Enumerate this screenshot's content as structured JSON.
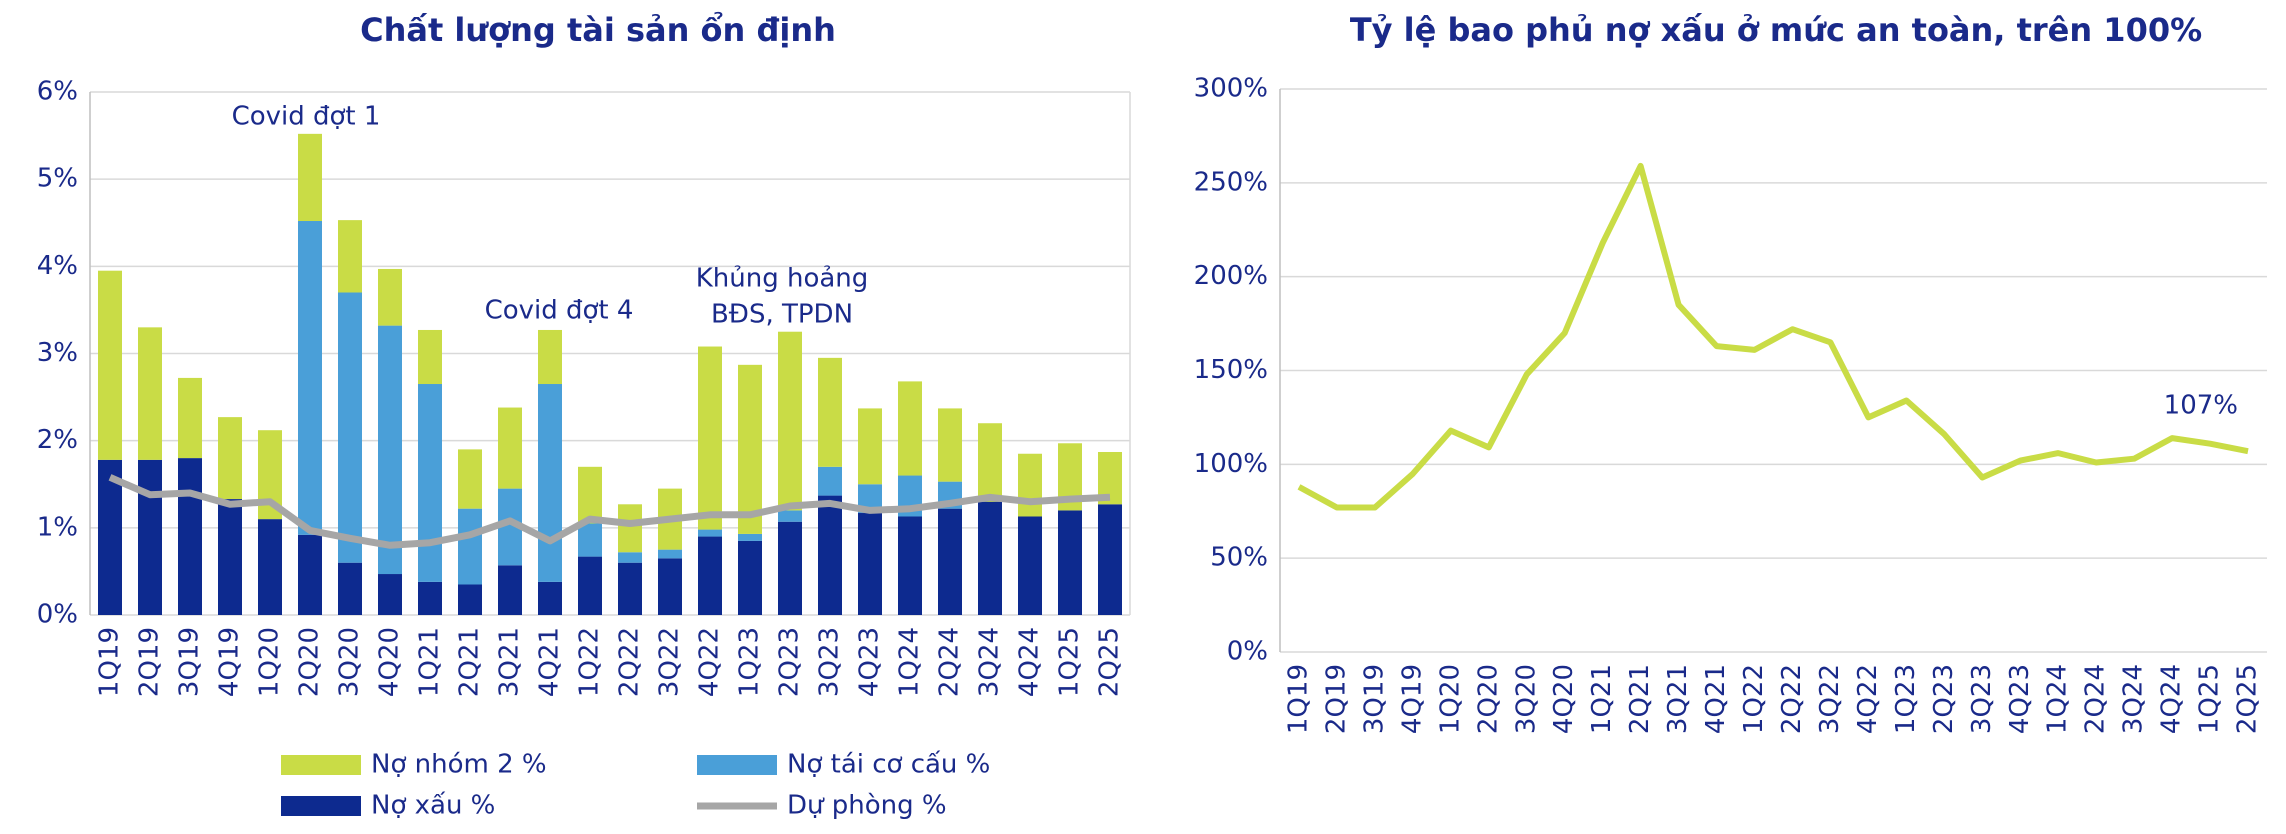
{
  "chart_data": [
    {
      "type": "bar",
      "stacked": true,
      "title": "Chất lượng  tài sản ổn định",
      "categories": [
        "1Q19",
        "2Q19",
        "3Q19",
        "4Q19",
        "1Q20",
        "2Q20",
        "3Q20",
        "4Q20",
        "1Q21",
        "2Q21",
        "3Q21",
        "4Q21",
        "1Q22",
        "2Q22",
        "3Q22",
        "4Q22",
        "1Q23",
        "2Q23",
        "3Q23",
        "4Q23",
        "1Q24",
        "2Q24",
        "3Q24",
        "4Q24",
        "1Q25",
        "2Q25"
      ],
      "series": [
        {
          "name": "Nợ xấu %",
          "color": "#0d2a8f",
          "kind": "bar",
          "values": [
            1.78,
            1.78,
            1.8,
            1.33,
            1.1,
            0.92,
            0.6,
            0.47,
            0.38,
            0.35,
            0.57,
            0.38,
            0.67,
            0.6,
            0.65,
            0.9,
            0.85,
            1.07,
            1.37,
            1.17,
            1.13,
            1.22,
            1.3,
            1.13,
            1.2,
            1.27
          ]
        },
        {
          "name": "Nợ tái cơ cấu %",
          "color": "#4a9fd8",
          "kind": "bar",
          "values": [
            0,
            0,
            0,
            0,
            0,
            3.6,
            3.1,
            2.85,
            2.27,
            0.87,
            0.88,
            2.27,
            0.38,
            0.12,
            0.1,
            0.08,
            0.08,
            0.13,
            0.33,
            0.33,
            0.47,
            0.31,
            0,
            0,
            0,
            0
          ]
        },
        {
          "name": "Nợ nhóm 2 %",
          "color": "#c9dc46",
          "kind": "bar",
          "values": [
            2.17,
            1.52,
            0.92,
            0.94,
            1.02,
            1.0,
            0.83,
            0.65,
            0.62,
            0.68,
            0.93,
            0.62,
            0.65,
            0.55,
            0.7,
            2.1,
            1.94,
            2.05,
            1.25,
            0.87,
            1.08,
            0.84,
            0.9,
            0.72,
            0.77,
            0.6
          ]
        },
        {
          "name": "Dự phòng %",
          "color": "#a6a6a6",
          "kind": "line",
          "values": [
            1.58,
            1.38,
            1.4,
            1.27,
            1.3,
            0.97,
            0.88,
            0.8,
            0.83,
            0.92,
            1.08,
            0.85,
            1.1,
            1.05,
            1.1,
            1.15,
            1.15,
            1.25,
            1.28,
            1.2,
            1.22,
            1.28,
            1.35,
            1.3,
            1.33,
            1.35
          ]
        }
      ],
      "ylim": [
        0,
        6
      ],
      "yticks": [
        {
          "value": 0,
          "label": "0%"
        },
        {
          "value": 1,
          "label": "1%"
        },
        {
          "value": 2,
          "label": "2%"
        },
        {
          "value": 3,
          "label": "3%"
        },
        {
          "value": 4,
          "label": "4%"
        },
        {
          "value": 5,
          "label": "5%"
        },
        {
          "value": 6,
          "label": "6%"
        }
      ],
      "grid": true,
      "annotations": [
        [
          "Covid đợt 1"
        ],
        [
          "Covid đợt 4"
        ],
        [
          "Khủng hoảng",
          "BĐS, TPDN"
        ]
      ]
    },
    {
      "type": "line",
      "title": "Tỷ lệ bao phủ nợ xấu ở mức an toàn, trên 100%",
      "categories": [
        "1Q19",
        "2Q19",
        "3Q19",
        "4Q19",
        "1Q20",
        "2Q20",
        "3Q20",
        "4Q20",
        "1Q21",
        "2Q21",
        "3Q21",
        "4Q21",
        "1Q22",
        "2Q22",
        "3Q22",
        "4Q22",
        "1Q23",
        "2Q23",
        "3Q23",
        "4Q23",
        "1Q24",
        "2Q24",
        "3Q24",
        "4Q24",
        "1Q25",
        "2Q25"
      ],
      "values": [
        88,
        77,
        77,
        95,
        118,
        109,
        148,
        170,
        218,
        259,
        185,
        163,
        161,
        172,
        165,
        125,
        134,
        116,
        93,
        102,
        106,
        101,
        103,
        114,
        111,
        107
      ],
      "value_labels": [
        null,
        null,
        null,
        null,
        null,
        null,
        null,
        null,
        null,
        null,
        null,
        null,
        null,
        null,
        null,
        null,
        null,
        null,
        null,
        null,
        null,
        null,
        null,
        null,
        null,
        "107%"
      ],
      "color": "#c9dc46",
      "ylim": [
        0,
        300
      ],
      "yticks": [
        {
          "value": 0,
          "label": "0%"
        },
        {
          "value": 50,
          "label": "50%"
        },
        {
          "value": 100,
          "label": "100%"
        },
        {
          "value": 150,
          "label": "150%"
        },
        {
          "value": 200,
          "label": "200%"
        },
        {
          "value": 250,
          "label": "250%"
        },
        {
          "value": 300,
          "label": "300%"
        }
      ],
      "grid": true
    }
  ]
}
